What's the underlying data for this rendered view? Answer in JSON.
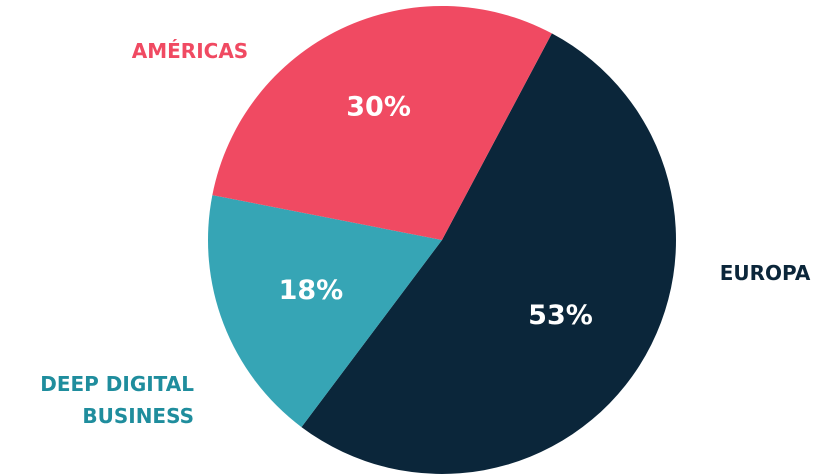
{
  "chart_data": {
    "type": "pie",
    "slices": [
      {
        "name": "EUROPA",
        "name_lines": [
          "EUROPA"
        ],
        "value": 53,
        "label": "53%",
        "color": "#0b263a",
        "label_color": "#0b263a"
      },
      {
        "name": "DEEP DIGITAL BUSINESS",
        "name_lines": [
          "DEEP DIGITAL",
          "BUSINESS"
        ],
        "value": 18,
        "label": "18%",
        "color": "#36a5b5",
        "label_color": "#1f8d9d"
      },
      {
        "name": "AMÉRICAS",
        "name_lines": [
          "AMÉRICAS"
        ],
        "value": 30,
        "label": "30%",
        "color": "#f04a62",
        "label_color": "#f04a62"
      }
    ]
  }
}
